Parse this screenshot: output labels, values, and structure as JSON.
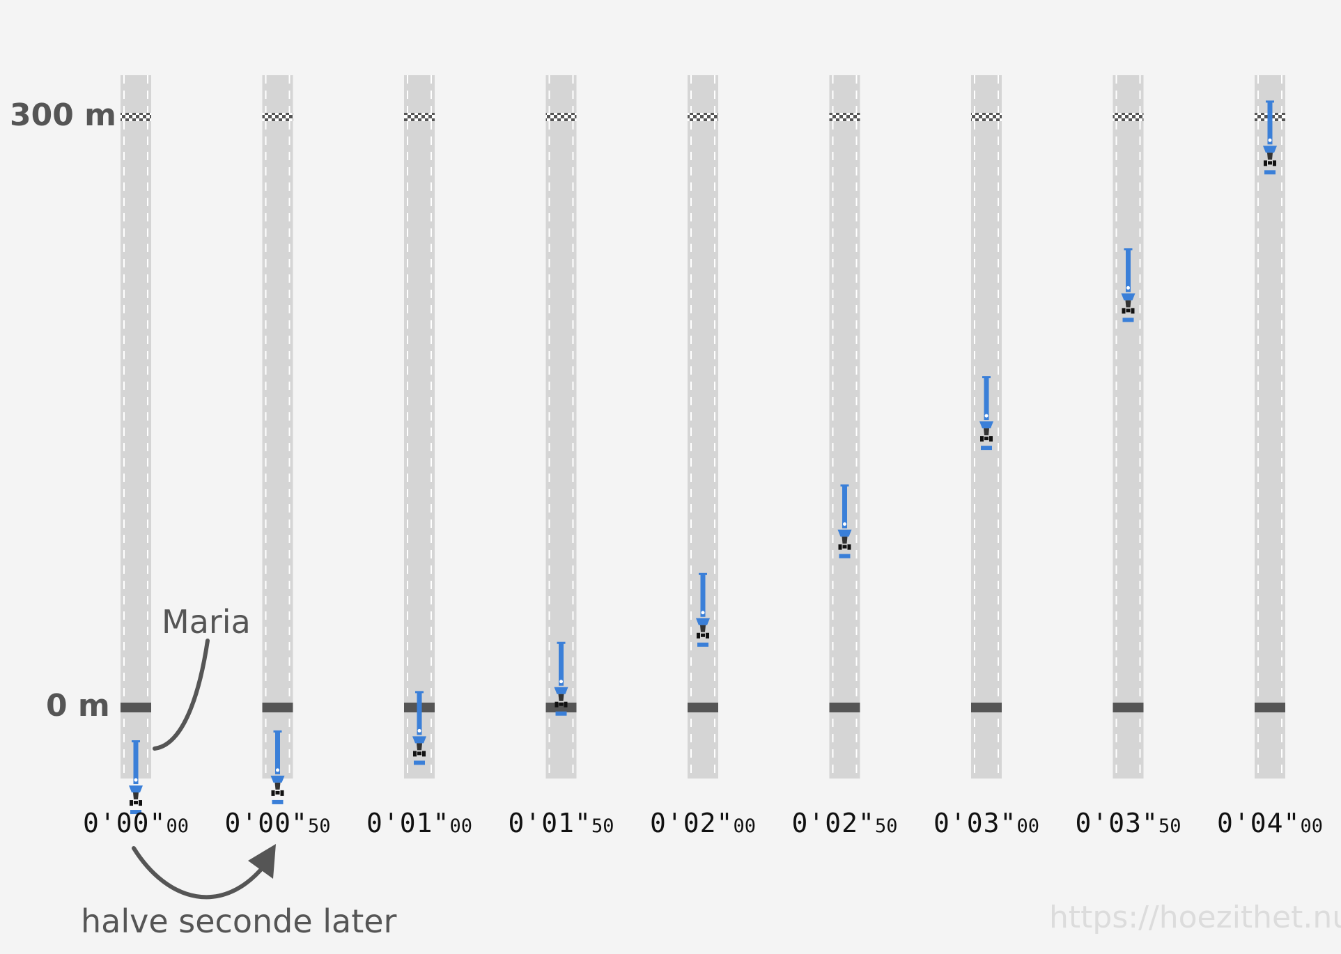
{
  "labels": {
    "top_distance": "300 m",
    "start_distance": "0 m",
    "car_name": "Maria",
    "interval_note": "halve seconde later",
    "watermark": "https://hoezithet.nu"
  },
  "colors": {
    "background": "#f4f4f4",
    "track": "#d5d5d5",
    "lane_dash": "#ffffff",
    "start_line": "#555555",
    "finish_checker": "#555555",
    "car_blue": "#3a7fd8",
    "text": "#555555",
    "timer_text": "#111111",
    "watermark": "#dcdcdc"
  },
  "frames": [
    {
      "time_main": "0'00\"",
      "time_hundredths": "00",
      "distance_m": -17
    },
    {
      "time_main": "0'00\"",
      "time_hundredths": "50",
      "distance_m": -12
    },
    {
      "time_main": "0'01\"",
      "time_hundredths": "00",
      "distance_m": 8
    },
    {
      "time_main": "0'01\"",
      "time_hundredths": "50",
      "distance_m": 33
    },
    {
      "time_main": "0'02\"",
      "time_hundredths": "00",
      "distance_m": 68
    },
    {
      "time_main": "0'02\"",
      "time_hundredths": "50",
      "distance_m": 113
    },
    {
      "time_main": "0'03\"",
      "time_hundredths": "00",
      "distance_m": 168
    },
    {
      "time_main": "0'03\"",
      "time_hundredths": "50",
      "distance_m": 233
    },
    {
      "time_main": "0'04\"",
      "time_hundredths": "00",
      "distance_m": 308
    }
  ],
  "car_icon": "formula-car-icon",
  "arrow_icons": [
    "curved-arrow-icon",
    "curved-arrow-icon"
  ]
}
